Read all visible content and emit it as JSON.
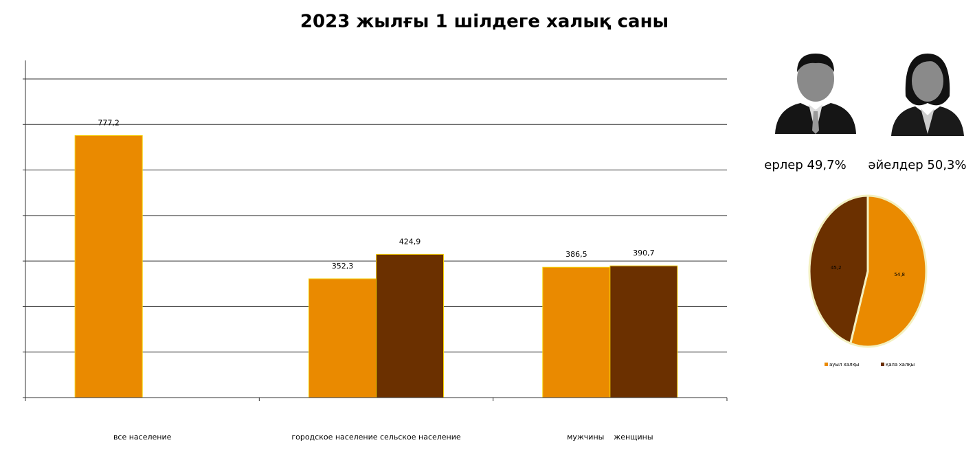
{
  "chart_data": [
    {
      "type": "bar",
      "title": "2023 жылғы 1 шілдеге халық саны",
      "categories": [
        "все население",
        "городское население сельское население",
        "мужчины    женщины"
      ],
      "series": [
        {
          "color": "#ea8a00",
          "values": [
            777.2,
            352.3,
            386.5
          ],
          "value_labels": [
            "777,2",
            "352,3",
            "386,5"
          ]
        },
        {
          "color": "#6b3000",
          "values": [
            null,
            424.9,
            390.7
          ],
          "value_labels": [
            null,
            "424,9",
            "390,7"
          ]
        }
      ],
      "ylim": [
        0,
        1000
      ],
      "yticks": [
        0,
        135,
        270,
        405,
        540,
        675,
        810,
        945
      ],
      "grid": true
    },
    {
      "type": "pie",
      "categories": [
        "ауыл халқы",
        "қала халқы"
      ],
      "values": [
        54.8,
        45.2
      ],
      "value_labels": [
        "54,8",
        "45,2"
      ],
      "colors": [
        "#ea8a00",
        "#6b3000"
      ]
    }
  ],
  "annotations": [
    "ерлер 49,7%",
    "әйелдер 50,3%"
  ]
}
